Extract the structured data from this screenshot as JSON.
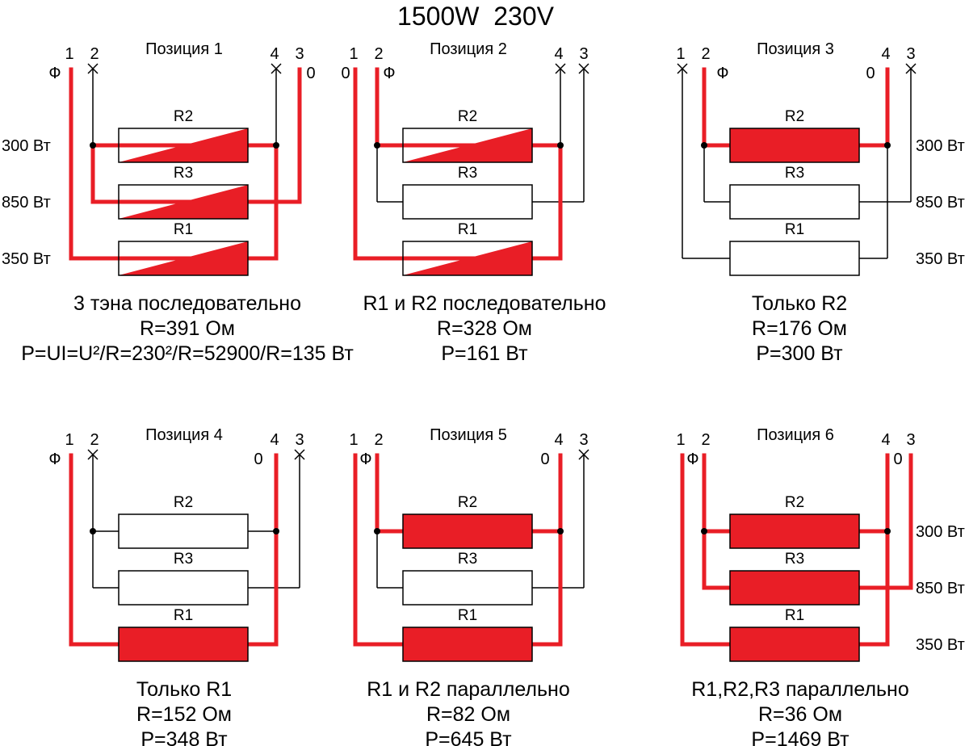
{
  "title": "1500W  230V",
  "colors": {
    "live": "#e91e26",
    "wire": "#000000",
    "background": "#ffffff"
  },
  "positions": [
    {
      "label": "Позиция 1",
      "terminals": [
        "1",
        "2",
        "4",
        "3"
      ],
      "phase": "Ф",
      "neutral": "0",
      "resistors": [
        "R2",
        "R3",
        "R1"
      ],
      "power_labels": [
        "300 Вт",
        "850 Вт",
        "350 Вт"
      ],
      "caption": [
        "3 тэна последовательно",
        "R=391 Ом",
        "P=UI=U²/R=230²/R=52900/R=135 Вт"
      ]
    },
    {
      "label": "Позиция 2",
      "terminals": [
        "1",
        "2",
        "4",
        "3"
      ],
      "phase": "Ф",
      "neutral": "0",
      "resistors": [
        "R2",
        "R3",
        "R1"
      ],
      "caption": [
        "R1 и R2 последовательно",
        "R=328 Ом",
        "P=161 Вт"
      ]
    },
    {
      "label": "Позиция 3",
      "terminals": [
        "1",
        "2",
        "4",
        "3"
      ],
      "phase": "Ф",
      "neutral": "0",
      "resistors": [
        "R2",
        "R3",
        "R1"
      ],
      "power_labels": [
        "300 Вт",
        "850 Вт",
        "350 Вт"
      ],
      "caption": [
        "Только R2",
        "R=176 Ом",
        "P=300 Вт"
      ]
    },
    {
      "label": "Позиция 4",
      "terminals": [
        "1",
        "2",
        "4",
        "3"
      ],
      "phase": "Ф",
      "neutral": "0",
      "resistors": [
        "R2",
        "R3",
        "R1"
      ],
      "caption": [
        "Только R1",
        "R=152 Ом",
        "P=348 Вт"
      ]
    },
    {
      "label": "Позиция 5",
      "terminals": [
        "1",
        "2",
        "4",
        "3"
      ],
      "phase": "Ф",
      "neutral": "0",
      "resistors": [
        "R2",
        "R3",
        "R1"
      ],
      "caption": [
        "R1 и R2 параллельно",
        "R=82 Ом",
        "P=645 Вт"
      ]
    },
    {
      "label": "Позиция 6",
      "terminals": [
        "1",
        "2",
        "4",
        "3"
      ],
      "phase": "Ф",
      "neutral": "0",
      "resistors": [
        "R2",
        "R3",
        "R1"
      ],
      "power_labels": [
        "300 Вт",
        "850 Вт",
        "350 Вт"
      ],
      "caption": [
        "R1,R2,R3 параллельно",
        "R=36 Ом",
        "P=1469 Вт"
      ]
    }
  ]
}
